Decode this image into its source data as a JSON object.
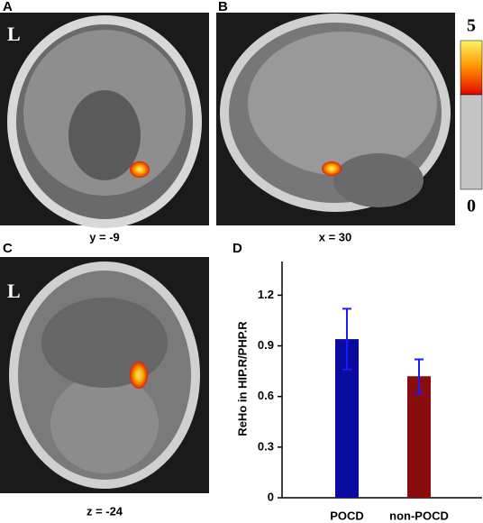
{
  "panels": [
    {
      "label": "A",
      "caption": "y = -9",
      "side": "L"
    },
    {
      "label": "B",
      "caption": "x = 30"
    },
    {
      "label": "C",
      "caption": "z = -24",
      "side": "L"
    }
  ],
  "colorbar": {
    "max": "5",
    "min": "0"
  },
  "chart_data": {
    "type": "bar",
    "label": "D",
    "ylabel": "ReHo in HIP.R/PHP.R",
    "categories": [
      "POCD",
      "non-POCD"
    ],
    "values": [
      0.94,
      0.72
    ],
    "errors": [
      0.18,
      0.1
    ],
    "colors": [
      "#0b0ba0",
      "#8a0c0c"
    ],
    "error_color": "#1a1aff",
    "ylim": [
      0,
      1.4
    ],
    "yticks": [
      0,
      0.3,
      0.6,
      0.9,
      1.2
    ]
  }
}
